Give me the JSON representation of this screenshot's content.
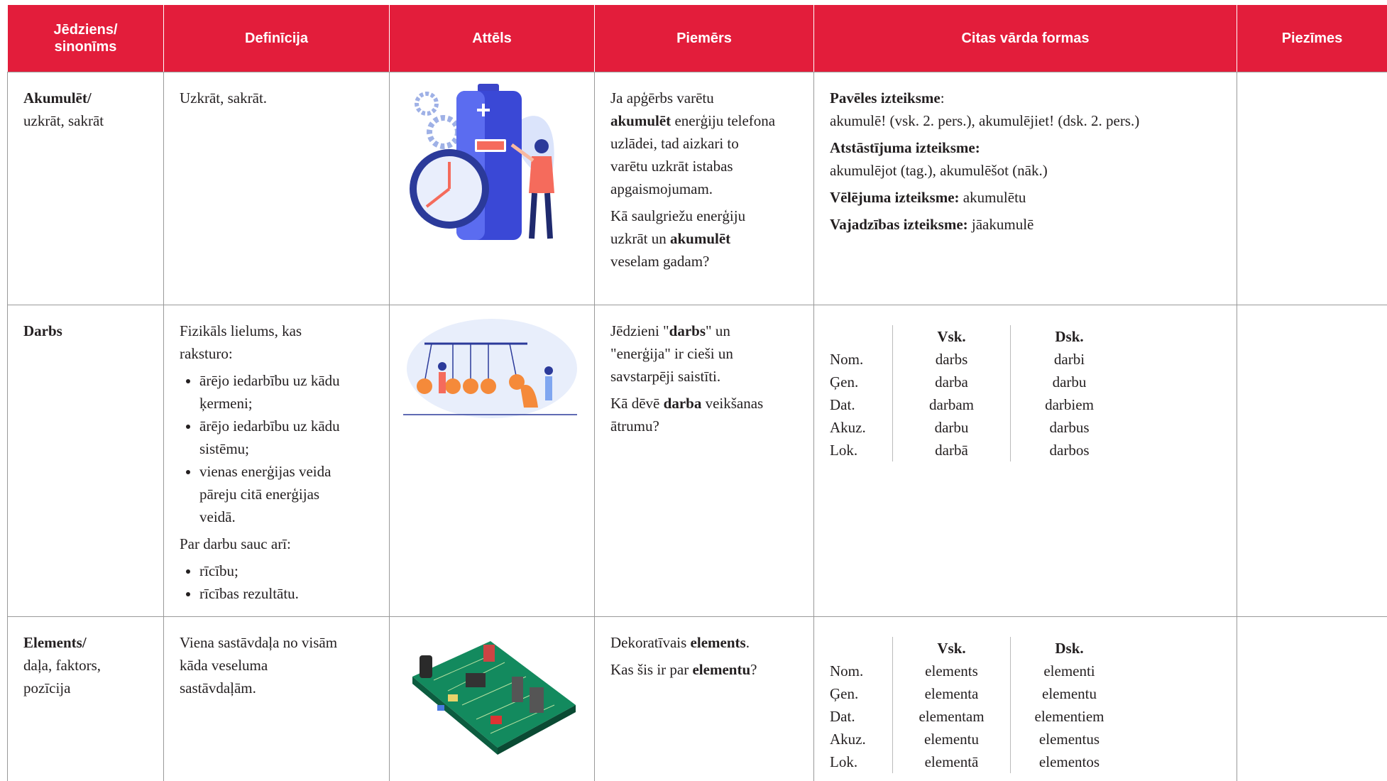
{
  "table": {
    "header": [
      [
        "Jēdziens/",
        "sinonīms"
      ],
      [
        "Definīcija"
      ],
      [
        "Attēls"
      ],
      [
        "Piemērs"
      ],
      [
        "Citas vārda formas"
      ],
      [
        "Piezīmes"
      ]
    ],
    "rows": [
      {
        "term": [
          [
            {
              "bold": "Akumulēt/"
            }
          ],
          [
            "uzkrāt, sakrāt"
          ]
        ],
        "definition": [
          {
            "p": [
              "Uzkrāt, sakrāt."
            ]
          }
        ],
        "example": [
          [
            "Ja apģērbs varētu ",
            {
              "bold": "akumulēt"
            },
            " enerģiju telefona uzlādei, tad aizkari to varētu uzkrāt istabas apgaismojumam."
          ],
          [
            "Kā saulgriežu enerģiju uzkrāt un ",
            {
              "bold": "akumulēt"
            },
            " veselam gadam?"
          ]
        ],
        "forms": {
          "blocks": [
            [
              [
                {
                  "bold": "Pavēles izteiksme"
                },
                ":"
              ],
              [
                "akumulē! (vsk. 2. pers.), akumulējiet! (dsk. 2. pers.)"
              ]
            ],
            [
              [
                {
                  "bold": "Atstāstījuma izteiksme:"
                }
              ],
              [
                "akumulējot (tag.), akumulēšot (nāk.)"
              ]
            ],
            [
              [
                {
                  "bold": "Vēlējuma izteiksme:"
                },
                " akumulētu"
              ]
            ],
            [
              [
                {
                  "bold": "Vajadzības izteiksme:"
                },
                " jāakumulē"
              ]
            ]
          ]
        }
      },
      {
        "term": [
          [
            {
              "bold": "Darbs"
            }
          ]
        ],
        "definition": [
          {
            "p": [
              "Fizikāls lielums, kas raksturo:"
            ]
          },
          {
            "ul": [
              [
                "ārējo iedarbību uz kādu ķermeni;"
              ],
              [
                "ārējo iedarbību uz kādu sistēmu;"
              ],
              [
                "vienas enerģijas veida pāreju citā enerģijas veidā."
              ]
            ]
          },
          {
            "p": [
              "Par darbu sauc arī:"
            ]
          },
          {
            "ul": [
              [
                "rīcību;"
              ],
              [
                "rīcības rezultātu."
              ]
            ]
          }
        ],
        "example": [
          [
            "Jēdzieni \"",
            {
              "bold": "darbs"
            },
            "\" un \"enerģija\" ir cieši un savstarpēji saistīti."
          ],
          [
            "Kā dēvē ",
            {
              "bold": "darba"
            },
            " veikšanas ātrumu?"
          ]
        ],
        "forms": {
          "head": [
            "Vsk.",
            "Dsk."
          ],
          "rows": [
            [
              "Nom.",
              "darbs",
              "darbi"
            ],
            [
              "Ģen.",
              "darba",
              "darbu"
            ],
            [
              "Dat.",
              "darbam",
              "darbiem"
            ],
            [
              "Akuz.",
              "darbu",
              "darbus"
            ],
            [
              "Lok.",
              "darbā",
              "darbos"
            ]
          ]
        }
      },
      {
        "term": [
          [
            {
              "bold": "Elements/"
            }
          ],
          [
            "daļa, faktors,"
          ],
          [
            "pozīcija"
          ]
        ],
        "definition": [
          {
            "p": [
              "Viena sastāvdaļa no visām kāda veseluma sastāvdaļām."
            ]
          }
        ],
        "example": [
          [
            "Dekoratīvais ",
            {
              "bold": "elements"
            },
            "."
          ],
          [
            "Kas šis ir par ",
            {
              "bold": "elementu"
            },
            "?"
          ]
        ],
        "forms": {
          "head": [
            "Vsk.",
            "Dsk."
          ],
          "rows": [
            [
              "Nom.",
              "elements",
              "elementi"
            ],
            [
              "Ģen.",
              "elementa",
              "elementu"
            ],
            [
              "Dat.",
              "elementam",
              "elementiem"
            ],
            [
              "Akuz.",
              "elementu",
              "elementus"
            ],
            [
              "Lok.",
              "elementā",
              "elementos"
            ]
          ]
        }
      }
    ]
  }
}
